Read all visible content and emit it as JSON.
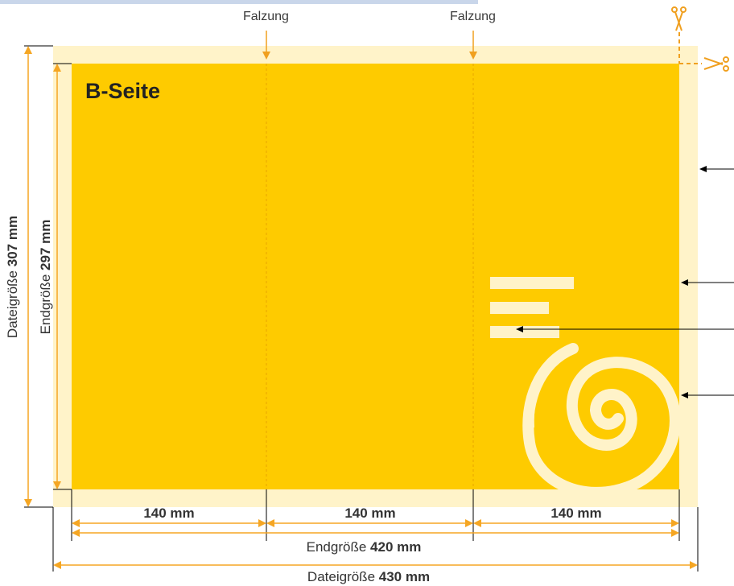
{
  "labels": {
    "fold_left": "Falzung",
    "fold_right": "Falzung",
    "side_title": "B-Seite",
    "panel_width_1": "140 mm",
    "panel_width_2": "140 mm",
    "panel_width_3": "140 mm",
    "final_width_prefix": "Endgröße ",
    "final_width_value": "420 mm",
    "file_width_prefix": "Dateigröße ",
    "file_width_value": "430 mm",
    "file_height_prefix": "Dateigröße ",
    "file_height_value": "307 mm",
    "final_height_prefix": "Endgröße ",
    "final_height_value": "297 mm"
  },
  "colors": {
    "bleed": "#fff3c9",
    "trim": "#fecb00",
    "dimension": "#f5a623",
    "fold": "#e0a000",
    "spiral": "#fff3c9",
    "text_bar": "#fff3c9"
  },
  "icons": {
    "scissors_top": "scissors-icon",
    "scissors_right": "scissors-icon"
  }
}
